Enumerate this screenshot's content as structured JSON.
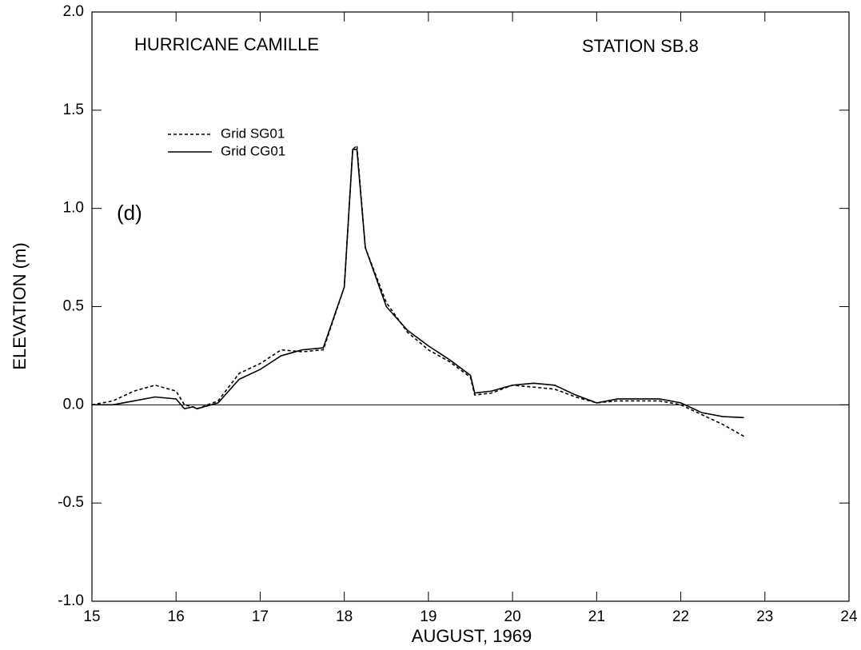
{
  "chart_data": {
    "type": "line",
    "annotations": [
      "HURRICANE CAMILLE",
      "STATION SB.8",
      "(d)"
    ],
    "x_label": "AUGUST, 1969",
    "y_label": "ELEVATION (m)",
    "x": [
      15.0,
      15.25,
      15.5,
      15.75,
      16.0,
      16.1,
      16.2,
      16.25,
      16.5,
      16.75,
      17.0,
      17.25,
      17.5,
      17.75,
      18.0,
      18.1,
      18.15,
      18.25,
      18.5,
      18.75,
      19.0,
      19.25,
      19.5,
      19.55,
      19.75,
      20.0,
      20.25,
      20.5,
      20.75,
      21.0,
      21.25,
      21.5,
      21.75,
      22.0,
      22.25,
      22.5,
      22.75
    ],
    "series": [
      {
        "name": "Grid SG01",
        "color": "#000000",
        "line_style": "dashed",
        "values": [
          0.0,
          0.02,
          0.07,
          0.1,
          0.07,
          0.0,
          -0.01,
          -0.02,
          0.02,
          0.16,
          0.21,
          0.28,
          0.27,
          0.28,
          0.6,
          1.3,
          1.32,
          0.8,
          0.52,
          0.37,
          0.28,
          0.22,
          0.14,
          0.05,
          0.06,
          0.1,
          0.09,
          0.08,
          0.04,
          0.01,
          0.02,
          0.02,
          0.02,
          0.0,
          -0.05,
          -0.1,
          -0.16
        ]
      },
      {
        "name": "Grid CG01",
        "color": "#000000",
        "line_style": "solid",
        "values": [
          0.0,
          0.0,
          0.02,
          0.04,
          0.03,
          -0.02,
          -0.01,
          -0.02,
          0.01,
          0.13,
          0.18,
          0.25,
          0.28,
          0.29,
          0.6,
          1.3,
          1.3,
          0.8,
          0.5,
          0.38,
          0.3,
          0.23,
          0.15,
          0.06,
          0.07,
          0.1,
          0.11,
          0.1,
          0.05,
          0.01,
          0.03,
          0.03,
          0.03,
          0.01,
          -0.04,
          -0.06,
          -0.065
        ]
      }
    ],
    "xlim": [
      15,
      24
    ],
    "xticks": [
      15,
      16,
      17,
      18,
      19,
      20,
      21,
      22,
      23,
      24
    ],
    "ylim": [
      -1,
      2
    ],
    "yticks": [
      {
        "value": 2,
        "label": "2.0"
      },
      {
        "value": 1.5,
        "label": "1.5"
      },
      {
        "value": 1,
        "label": "1.0"
      },
      {
        "value": 0.5,
        "label": "0.5"
      },
      {
        "value": 0,
        "label": "0.0"
      },
      {
        "value": -0.5,
        "label": "-0.5"
      },
      {
        "value": -1,
        "label": "-1.0"
      }
    ],
    "reference_line": 0,
    "legend": "upper left",
    "grid": false
  }
}
